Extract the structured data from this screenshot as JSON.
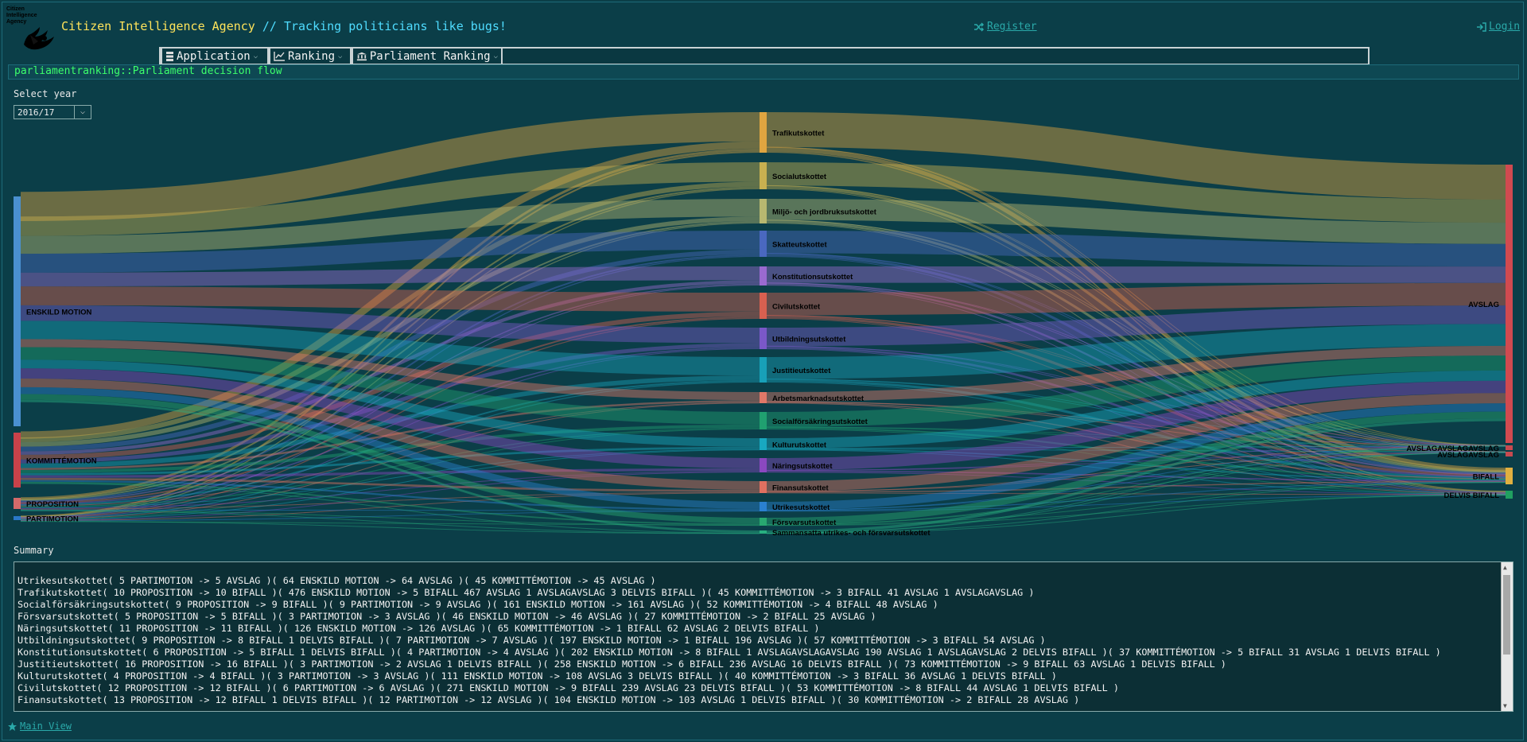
{
  "header": {
    "logo_text": "Citizen Intelligence Agency",
    "title_main": "Citizen Intelligence Agency",
    "title_sep": " // ",
    "title_tag": "Tracking politicians like bugs!",
    "register": "Register",
    "login": "Login"
  },
  "menu": [
    {
      "label": "Application",
      "icon": "server-icon"
    },
    {
      "label": "Ranking",
      "icon": "chart-line-icon"
    },
    {
      "label": "Parliament Ranking",
      "icon": "institution-icon"
    }
  ],
  "page": {
    "header": "parliamentranking::Parliament decision flow"
  },
  "year_select": {
    "label": "Select year",
    "value": "2016/17"
  },
  "sankey": {
    "sources": [
      "ENSKILD MOTION",
      "KOMMITTÉMOTION",
      "PROPOSITION",
      "PARTIMOTION"
    ],
    "committees": [
      "Trafikutskottet",
      "Socialutskottet",
      "Miljö- och jordbruksutskottet",
      "Skatteutskottet",
      "Konstitutionsutskottet",
      "Civilutskottet",
      "Utbildningsutskottet",
      "Justitieutskottet",
      "Arbetsmarknadsutskottet",
      "Socialförsäkringsutskottet",
      "Kulturutskottet",
      "Näringsutskottet",
      "Finansutskottet",
      "Utrikesutskottet",
      "Försvarsutskottet",
      "Sammansatta utrikes- och försvarsutskottet"
    ],
    "outcomes": [
      "AVSLAG",
      "AVSLAGAVSLAGAVSLAG",
      "AVSLAGAVSLAG",
      "BIFALL",
      "DELVIS BIFALL"
    ]
  },
  "summary": {
    "label": "Summary",
    "lines": [
      "Utrikesutskottet( 5 PARTIMOTION -> 5 AVSLAG )( 64 ENSKILD MOTION -> 64 AVSLAG )( 45 KOMMITTÉMOTION -> 45 AVSLAG )",
      "Trafikutskottet( 10 PROPOSITION -> 10 BIFALL )( 476 ENSKILD MOTION -> 5 BIFALL 467 AVSLAG 1 AVSLAGAVSLAG 3 DELVIS BIFALL )( 45 KOMMITTÉMOTION -> 3 BIFALL 41 AVSLAG 1 AVSLAGAVSLAG )",
      "Socialförsäkringsutskottet( 9 PROPOSITION -> 9 BIFALL )( 9 PARTIMOTION -> 9 AVSLAG )( 161 ENSKILD MOTION -> 161 AVSLAG )( 52 KOMMITTÉMOTION -> 4 BIFALL 48 AVSLAG )",
      "Försvarsutskottet( 5 PROPOSITION -> 5 BIFALL )( 3 PARTIMOTION -> 3 AVSLAG )( 46 ENSKILD MOTION -> 46 AVSLAG )( 27 KOMMITTÉMOTION -> 2 BIFALL 25 AVSLAG )",
      "Näringsutskottet( 11 PROPOSITION -> 11 BIFALL )( 126 ENSKILD MOTION -> 126 AVSLAG )( 65 KOMMITTÉMOTION -> 1 BIFALL 62 AVSLAG 2 DELVIS BIFALL )",
      "Utbildningsutskottet( 9 PROPOSITION -> 8 BIFALL 1 DELVIS BIFALL )( 7 PARTIMOTION -> 7 AVSLAG )( 197 ENSKILD MOTION -> 1 BIFALL 196 AVSLAG )( 57 KOMMITTÉMOTION -> 3 BIFALL 54 AVSLAG )",
      "Konstitutionsutskottet( 6 PROPOSITION -> 5 BIFALL 1 DELVIS BIFALL )( 4 PARTIMOTION -> 4 AVSLAG )( 202 ENSKILD MOTION -> 8 BIFALL 1 AVSLAGAVSLAGAVSLAG 190 AVSLAG 1 AVSLAGAVSLAG 2 DELVIS BIFALL )( 37 KOMMITTÉMOTION -> 5 BIFALL 31 AVSLAG 1 DELVIS BIFALL )",
      "Justitieutskottet( 16 PROPOSITION -> 16 BIFALL )( 3 PARTIMOTION -> 2 AVSLAG 1 DELVIS BIFALL )( 258 ENSKILD MOTION -> 6 BIFALL 236 AVSLAG 16 DELVIS BIFALL )( 73 KOMMITTÉMOTION -> 9 BIFALL 63 AVSLAG 1 DELVIS BIFALL )",
      "Kulturutskottet( 4 PROPOSITION -> 4 BIFALL )( 3 PARTIMOTION -> 3 AVSLAG )( 111 ENSKILD MOTION -> 108 AVSLAG 3 DELVIS BIFALL )( 40 KOMMITTÉMOTION -> 3 BIFALL 36 AVSLAG 1 DELVIS BIFALL )",
      "Civilutskottet( 12 PROPOSITION -> 12 BIFALL )( 6 PARTIMOTION -> 6 AVSLAG )( 271 ENSKILD MOTION -> 9 BIFALL 239 AVSLAG 23 DELVIS BIFALL )( 53 KOMMITTÉMOTION -> 8 BIFALL 44 AVSLAG 1 DELVIS BIFALL )",
      "Finansutskottet( 13 PROPOSITION -> 12 BIFALL 1 DELVIS BIFALL )( 12 PARTIMOTION -> 12 AVSLAG )( 104 ENSKILD MOTION -> 103 AVSLAG 1 DELVIS BIFALL )( 30 KOMMITTÉMOTION -> 2 BIFALL 28 AVSLAG )"
    ]
  },
  "footer": {
    "main_view": "Main View"
  },
  "colors": {
    "bg": "#0b3e48",
    "title": "#ffe35a",
    "accent": "#4fdcff",
    "green": "#3cff6b",
    "link": "#2aa9a9"
  }
}
